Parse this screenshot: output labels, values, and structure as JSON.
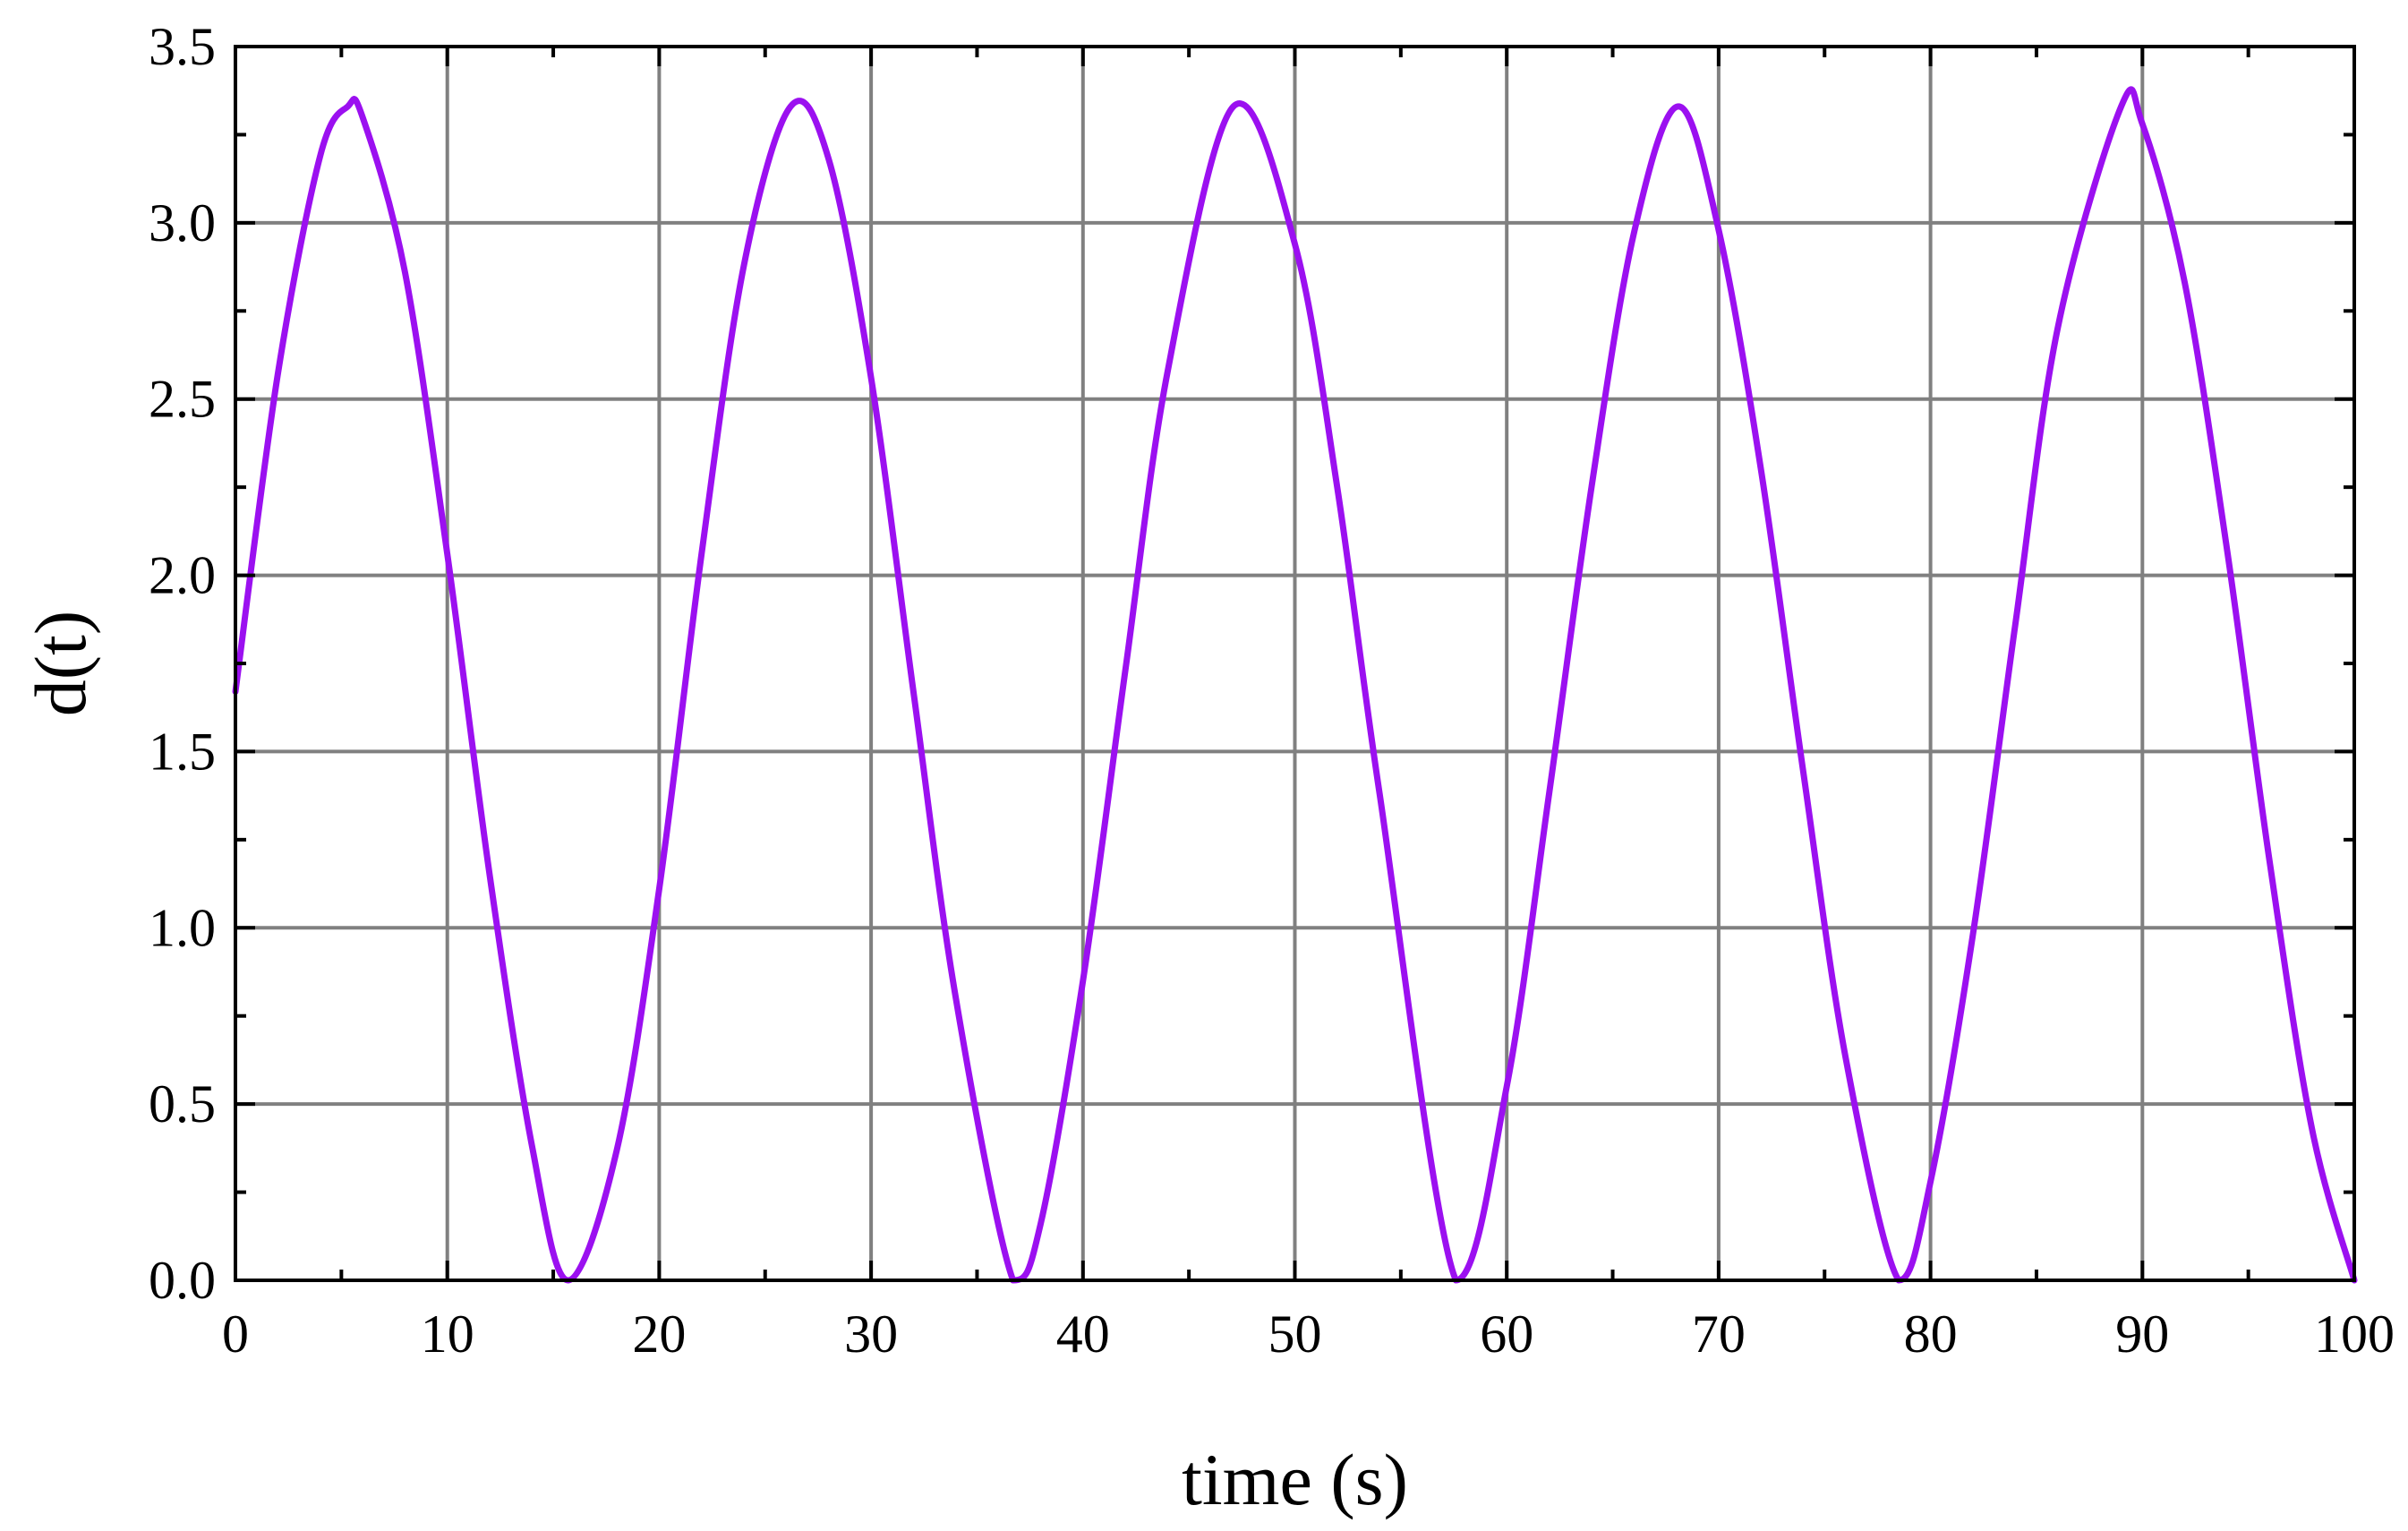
{
  "chart_data": {
    "type": "line",
    "title": "",
    "xlabel": "time (s)",
    "ylabel": "d(t)",
    "xlim": [
      0,
      100
    ],
    "ylim": [
      0,
      3.5
    ],
    "x_ticks": [
      "0",
      "10",
      "20",
      "30",
      "40",
      "50",
      "60",
      "70",
      "80",
      "90",
      "100"
    ],
    "y_ticks": [
      "0.0",
      "0.5",
      "1.0",
      "1.5",
      "2.0",
      "2.5",
      "3.0",
      "3.5"
    ],
    "grid": true,
    "legend": "none",
    "series": [
      {
        "color": "#9B10F0",
        "x": [
          0,
          2,
          4,
          5.3,
          6,
          8,
          10,
          12,
          14,
          15.7,
          18,
          20,
          22,
          24,
          26.2,
          28,
          30,
          32,
          34,
          36.7,
          38,
          40,
          42,
          44,
          47.1,
          50,
          52,
          54,
          57.6,
          60,
          62,
          64,
          66,
          68.1,
          70,
          72,
          74,
          76,
          78.5,
          80,
          82,
          84,
          86,
          89,
          90,
          92,
          94,
          96,
          98,
          100
        ],
        "y": [
          1.67,
          2.57,
          3.19,
          3.33,
          3.3,
          2.86,
          2.06,
          1.15,
          0.38,
          0.0,
          0.37,
          1.11,
          2.06,
          2.88,
          3.33,
          3.18,
          2.56,
          1.67,
          0.8,
          0.0,
          0.16,
          0.85,
          1.73,
          2.58,
          3.33,
          2.94,
          2.25,
          1.38,
          0.0,
          0.55,
          1.38,
          2.25,
          2.97,
          3.33,
          2.98,
          2.3,
          1.44,
          0.63,
          0.0,
          0.28,
          0.98,
          1.86,
          2.7,
          3.33,
          3.28,
          2.83,
          2.07,
          1.19,
          0.43,
          0.0
        ]
      }
    ]
  }
}
